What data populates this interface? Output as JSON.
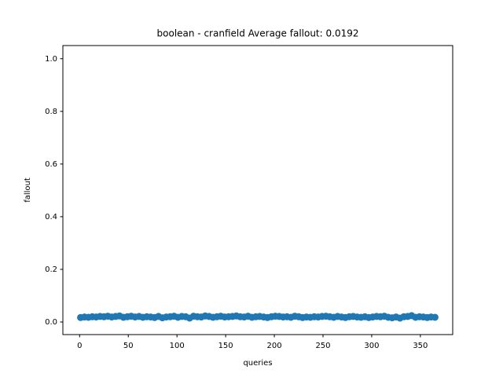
{
  "chart_data": {
    "type": "scatter",
    "title": "boolean - cranfield  Average fallout: 0.0192",
    "x_label": "queries",
    "y_label": "fallout",
    "color": "#1f77b4",
    "xlim": [
      -17.2,
      383.2
    ],
    "ylim": [
      -0.0478,
      1.05
    ],
    "xticks": [
      0,
      50,
      100,
      150,
      200,
      250,
      300,
      350
    ],
    "yticks": [
      {
        "value": 0,
        "label": "0.0"
      },
      0.2,
      0.4,
      0.6,
      0.8,
      {
        "value": 1,
        "label": "1.0"
      }
    ],
    "x": [
      1,
      5,
      9,
      13,
      17,
      21,
      25,
      29,
      33,
      37,
      41,
      45,
      49,
      53,
      57,
      61,
      65,
      69,
      73,
      77,
      81,
      85,
      89,
      93,
      97,
      101,
      105,
      109,
      113,
      117,
      121,
      125,
      129,
      133,
      137,
      141,
      145,
      149,
      153,
      157,
      161,
      165,
      169,
      173,
      177,
      181,
      185,
      189,
      193,
      197,
      201,
      205,
      209,
      213,
      217,
      221,
      225,
      229,
      233,
      237,
      241,
      245,
      249,
      253,
      257,
      261,
      265,
      269,
      273,
      277,
      281,
      285,
      289,
      293,
      297,
      301,
      305,
      309,
      313,
      317,
      321,
      325,
      329,
      333,
      337,
      341,
      345,
      349,
      353,
      357,
      361,
      365
    ],
    "values": [
      0.017,
      0.019,
      0.018,
      0.02,
      0.019,
      0.021,
      0.02,
      0.022,
      0.019,
      0.021,
      0.023,
      0.018,
      0.02,
      0.022,
      0.019,
      0.021,
      0.018,
      0.02,
      0.019,
      0.017,
      0.021,
      0.016,
      0.019,
      0.02,
      0.022,
      0.018,
      0.021,
      0.02,
      0.015,
      0.022,
      0.02,
      0.019,
      0.023,
      0.021,
      0.018,
      0.02,
      0.022,
      0.019,
      0.02,
      0.021,
      0.023,
      0.02,
      0.019,
      0.022,
      0.018,
      0.02,
      0.021,
      0.019,
      0.017,
      0.02,
      0.022,
      0.021,
      0.019,
      0.02,
      0.018,
      0.022,
      0.02,
      0.017,
      0.019,
      0.018,
      0.02,
      0.019,
      0.021,
      0.022,
      0.02,
      0.018,
      0.021,
      0.019,
      0.017,
      0.02,
      0.021,
      0.019,
      0.018,
      0.02,
      0.017,
      0.019,
      0.021,
      0.02,
      0.022,
      0.018,
      0.016,
      0.019,
      0.015,
      0.02,
      0.021,
      0.024,
      0.018,
      0.02,
      0.019,
      0.017,
      0.019,
      0.018
    ]
  }
}
